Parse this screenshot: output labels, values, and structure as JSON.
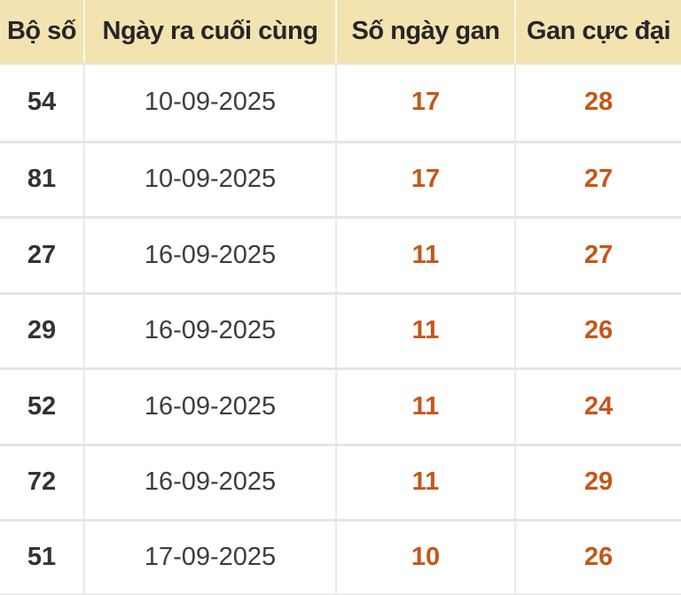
{
  "colors": {
    "header_bg": "#f2e3b1",
    "header_text": "#262626",
    "accent_orange": "#c4571a",
    "body_text": "#3d3d3d",
    "bold_num": "#333333",
    "border": "#e5e5e5"
  },
  "table": {
    "columns": [
      {
        "key": "bo_so",
        "label": "Bộ số"
      },
      {
        "key": "ngay_ra",
        "label": "Ngày ra cuối cùng"
      },
      {
        "key": "so_ngay_gan",
        "label": "Số ngày gan"
      },
      {
        "key": "gan_cuc_dai",
        "label": "Gan cực đại"
      }
    ],
    "rows": [
      {
        "bo_so": "54",
        "ngay_ra": "10-09-2025",
        "so_ngay_gan": "17",
        "gan_cuc_dai": "28"
      },
      {
        "bo_so": "81",
        "ngay_ra": "10-09-2025",
        "so_ngay_gan": "17",
        "gan_cuc_dai": "27"
      },
      {
        "bo_so": "27",
        "ngay_ra": "16-09-2025",
        "so_ngay_gan": "11",
        "gan_cuc_dai": "27"
      },
      {
        "bo_so": "29",
        "ngay_ra": "16-09-2025",
        "so_ngay_gan": "11",
        "gan_cuc_dai": "26"
      },
      {
        "bo_so": "52",
        "ngay_ra": "16-09-2025",
        "so_ngay_gan": "11",
        "gan_cuc_dai": "24"
      },
      {
        "bo_so": "72",
        "ngay_ra": "16-09-2025",
        "so_ngay_gan": "11",
        "gan_cuc_dai": "29"
      },
      {
        "bo_so": "51",
        "ngay_ra": "17-09-2025",
        "so_ngay_gan": "10",
        "gan_cuc_dai": "26"
      }
    ]
  }
}
